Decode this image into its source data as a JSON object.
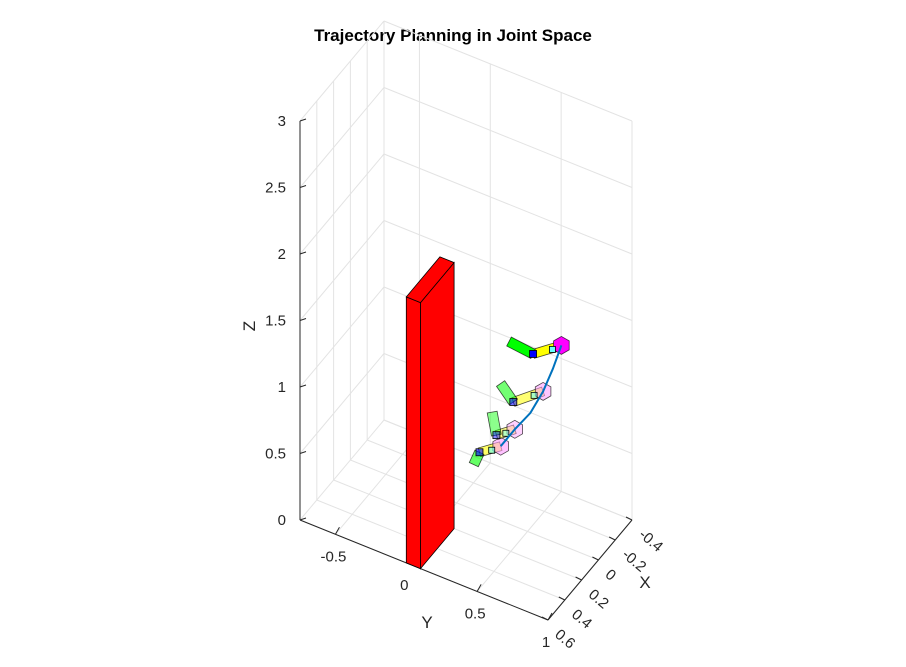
{
  "chart_data": {
    "type": "scatter",
    "plot_kind": "3d",
    "title": "Trajectory Planning in Joint Space",
    "xlabel": "X",
    "ylabel": "Y",
    "zlabel": "Z",
    "xlim": [
      -0.4,
      0.6
    ],
    "ylim": [
      -0.75,
      1.0
    ],
    "zlim": [
      0,
      3
    ],
    "xticks": [
      -0.4,
      -0.2,
      0,
      0.2,
      0.4,
      0.6
    ],
    "xtick_labels": [
      "-0.4",
      "-0.2",
      "0",
      "0.2",
      "0.4",
      "0.6"
    ],
    "yticks": [
      -0.5,
      0,
      0.5,
      1
    ],
    "ytick_labels": [
      "-0.5",
      "0",
      "0.5",
      "1"
    ],
    "zticks": [
      0,
      0.5,
      1,
      1.5,
      2,
      2.5,
      3
    ],
    "ztick_labels": [
      "0",
      "0.5",
      "1",
      "1.5",
      "2",
      "2.5",
      "3"
    ],
    "grid": true,
    "obstacle": {
      "color": "#ff0000",
      "x_range": [
        0.2,
        0.6
      ],
      "y_range": [
        0.0,
        0.1
      ],
      "z_range": [
        0,
        2.0
      ]
    },
    "trajectory": {
      "color": "#0072bd",
      "points": [
        {
          "x": -0.15,
          "y": 0.65,
          "z": 1.35
        },
        {
          "x": -0.1,
          "y": 0.62,
          "z": 1.2
        },
        {
          "x": -0.05,
          "y": 0.58,
          "z": 1.05
        },
        {
          "x": 0.0,
          "y": 0.52,
          "z": 0.9
        },
        {
          "x": 0.05,
          "y": 0.44,
          "z": 0.78
        },
        {
          "x": 0.1,
          "y": 0.37,
          "z": 0.66
        }
      ]
    },
    "robot_poses": [
      {
        "opacity": 1.0,
        "joints": [
          {
            "x": -0.15,
            "y": 0.65,
            "z": 1.35
          },
          {
            "x": -0.15,
            "y": 0.45,
            "z": 1.2
          },
          {
            "x": -0.15,
            "y": 0.28,
            "z": 1.22
          }
        ]
      },
      {
        "opacity": 0.55,
        "joints": [
          {
            "x": -0.05,
            "y": 0.58,
            "z": 1.05
          },
          {
            "x": -0.05,
            "y": 0.37,
            "z": 0.88
          },
          {
            "x": -0.05,
            "y": 0.28,
            "z": 0.98
          }
        ]
      },
      {
        "opacity": 0.45,
        "joints": [
          {
            "x": 0.05,
            "y": 0.44,
            "z": 0.78
          },
          {
            "x": 0.05,
            "y": 0.31,
            "z": 0.68
          },
          {
            "x": 0.05,
            "y": 0.28,
            "z": 0.84
          }
        ]
      },
      {
        "opacity": 0.6,
        "joints": [
          {
            "x": 0.1,
            "y": 0.37,
            "z": 0.66
          },
          {
            "x": 0.1,
            "y": 0.22,
            "z": 0.55
          },
          {
            "x": 0.1,
            "y": 0.18,
            "z": 0.44
          }
        ]
      }
    ],
    "colors": {
      "base_joint": "#ff00ff",
      "base_joint_light": "#ff99ff",
      "link1": "#ffff00",
      "link2": "#00ff00",
      "end_effector": "#0000ff",
      "wrist": "#66ffff"
    }
  }
}
